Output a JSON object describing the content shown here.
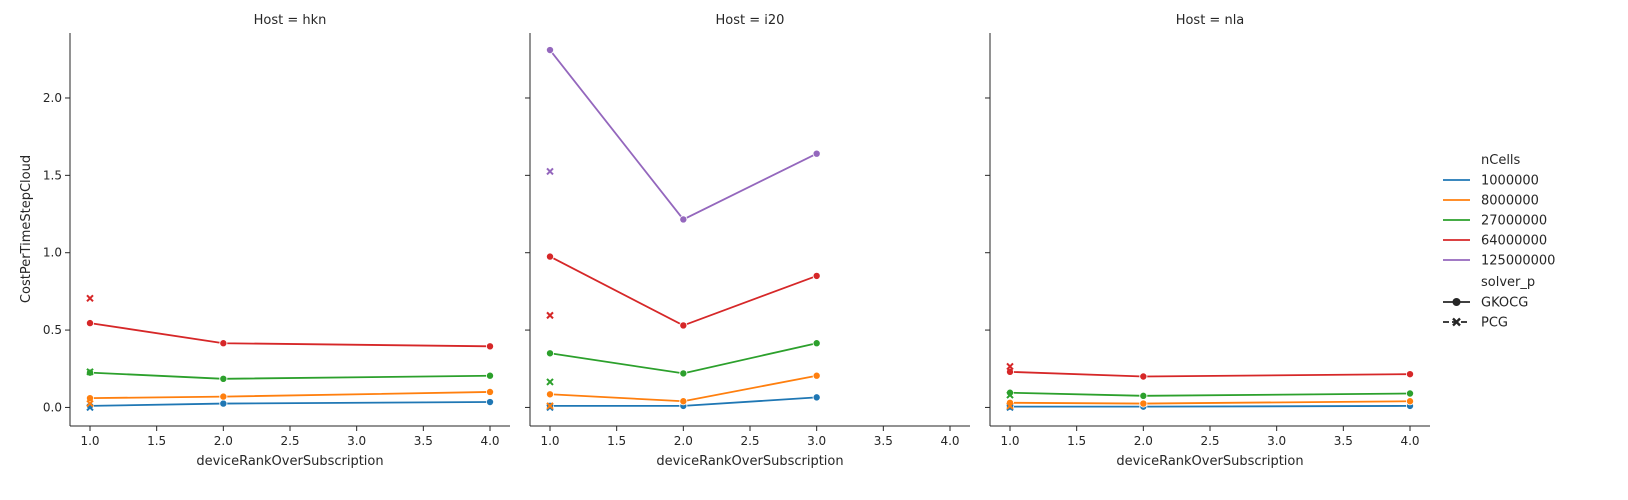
{
  "chart_data": {
    "type": "line",
    "facet_titles": [
      "Host = hkn",
      "Host = i20",
      "Host = nla"
    ],
    "xlabel": "deviceRankOverSubscription",
    "ylabel": "CostPerTimeStepCloud",
    "xlim": [
      0.85,
      4.15
    ],
    "ylim": [
      -0.12,
      2.42
    ],
    "xticks": [
      "1.0",
      "1.5",
      "2.0",
      "2.5",
      "3.0",
      "3.5",
      "4.0"
    ],
    "yticks": [
      "0.0",
      "0.5",
      "1.0",
      "1.5",
      "2.0"
    ],
    "legend": {
      "placement": "right",
      "hue_title": "nCells",
      "hue_entries": [
        {
          "label": "1000000",
          "color": "#1f77b4"
        },
        {
          "label": "8000000",
          "color": "#ff7f0e"
        },
        {
          "label": "27000000",
          "color": "#2ca02c"
        },
        {
          "label": "64000000",
          "color": "#d62728"
        },
        {
          "label": "125000000",
          "color": "#9467bd"
        }
      ],
      "style_title": "solver_p",
      "style_entries": [
        {
          "label": "GKOCG",
          "marker": "circle"
        },
        {
          "label": "PCG",
          "marker": "x"
        }
      ]
    },
    "facets": [
      {
        "host": "hkn",
        "lines": [
          {
            "nCells": "1000000",
            "x": [
              1,
              2,
              4
            ],
            "y": [
              0.01,
              0.025,
              0.035
            ]
          },
          {
            "nCells": "8000000",
            "x": [
              1,
              2,
              4
            ],
            "y": [
              0.06,
              0.07,
              0.1
            ]
          },
          {
            "nCells": "27000000",
            "x": [
              1,
              2,
              4
            ],
            "y": [
              0.225,
              0.185,
              0.205
            ]
          },
          {
            "nCells": "64000000",
            "x": [
              1,
              2,
              4
            ],
            "y": [
              0.545,
              0.415,
              0.395
            ]
          }
        ],
        "pcg_points": [
          {
            "nCells": "1000000",
            "x": 1,
            "y": 0.0
          },
          {
            "nCells": "8000000",
            "x": 1,
            "y": 0.025
          },
          {
            "nCells": "27000000",
            "x": 1,
            "y": 0.23
          },
          {
            "nCells": "64000000",
            "x": 1,
            "y": 0.705
          }
        ]
      },
      {
        "host": "i20",
        "lines": [
          {
            "nCells": "1000000",
            "x": [
              1,
              2,
              3
            ],
            "y": [
              0.01,
              0.01,
              0.065
            ]
          },
          {
            "nCells": "8000000",
            "x": [
              1,
              2,
              3
            ],
            "y": [
              0.085,
              0.04,
              0.205
            ]
          },
          {
            "nCells": "27000000",
            "x": [
              1,
              2,
              3
            ],
            "y": [
              0.35,
              0.22,
              0.415
            ]
          },
          {
            "nCells": "64000000",
            "x": [
              1,
              2,
              3
            ],
            "y": [
              0.975,
              0.53,
              0.85
            ]
          },
          {
            "nCells": "125000000",
            "x": [
              1,
              2,
              3
            ],
            "y": [
              2.31,
              1.215,
              1.64
            ]
          }
        ],
        "pcg_points": [
          {
            "nCells": "1000000",
            "x": 1,
            "y": 0.0
          },
          {
            "nCells": "8000000",
            "x": 1,
            "y": 0.01
          },
          {
            "nCells": "27000000",
            "x": 1,
            "y": 0.165
          },
          {
            "nCells": "64000000",
            "x": 1,
            "y": 0.595
          },
          {
            "nCells": "125000000",
            "x": 1,
            "y": 1.525
          }
        ]
      },
      {
        "host": "nla",
        "lines": [
          {
            "nCells": "1000000",
            "x": [
              1,
              2,
              4
            ],
            "y": [
              0.005,
              0.005,
              0.01
            ]
          },
          {
            "nCells": "8000000",
            "x": [
              1,
              2,
              4
            ],
            "y": [
              0.03,
              0.025,
              0.04
            ]
          },
          {
            "nCells": "27000000",
            "x": [
              1,
              2,
              4
            ],
            "y": [
              0.095,
              0.075,
              0.09
            ]
          },
          {
            "nCells": "64000000",
            "x": [
              1,
              2,
              4
            ],
            "y": [
              0.23,
              0.2,
              0.215
            ]
          }
        ],
        "pcg_points": [
          {
            "nCells": "1000000",
            "x": 1,
            "y": 0.0
          },
          {
            "nCells": "8000000",
            "x": 1,
            "y": 0.01
          },
          {
            "nCells": "27000000",
            "x": 1,
            "y": 0.08
          },
          {
            "nCells": "64000000",
            "x": 1,
            "y": 0.265
          }
        ]
      }
    ]
  }
}
